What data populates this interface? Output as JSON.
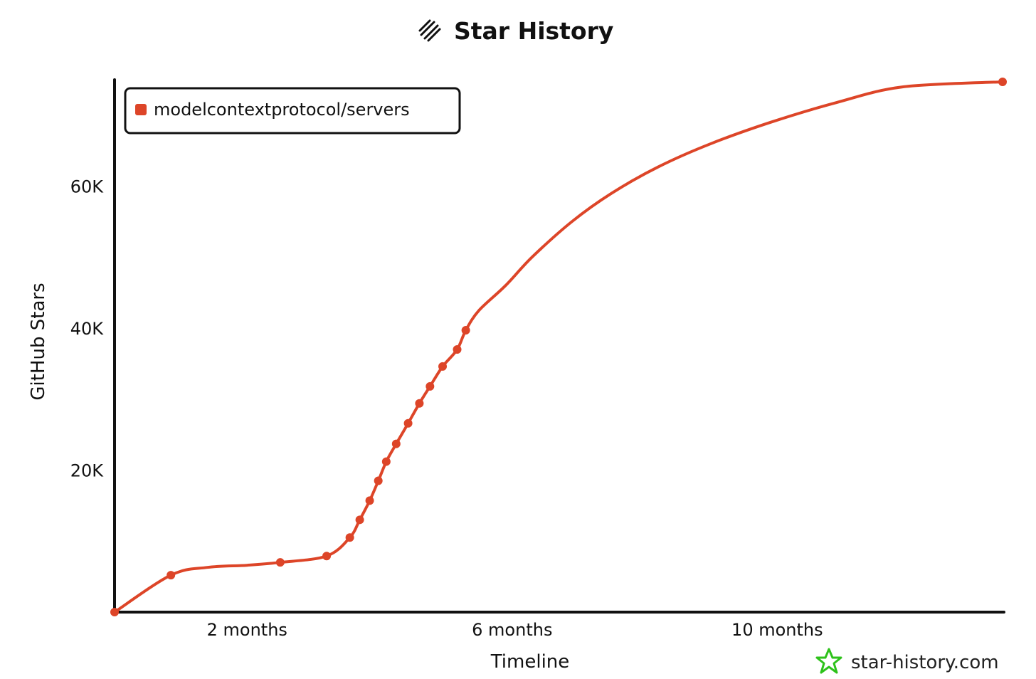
{
  "chart_data": {
    "type": "line",
    "title": "Star History",
    "xlabel": "Timeline",
    "ylabel": "GitHub Stars",
    "x_unit": "months",
    "xlim": [
      0,
      13.4
    ],
    "ylim": [
      0,
      75000
    ],
    "x_ticks": [
      {
        "value": 2,
        "label": "2 months"
      },
      {
        "value": 6,
        "label": "6 months"
      },
      {
        "value": 10,
        "label": "10 months"
      }
    ],
    "y_ticks": [
      {
        "value": 20000,
        "label": "20K"
      },
      {
        "value": 40000,
        "label": "40K"
      },
      {
        "value": 60000,
        "label": "60K"
      }
    ],
    "grid": false,
    "legend_position": "top-left",
    "series": [
      {
        "name": "modelcontextprotocol/servers",
        "color": "#dd4528",
        "x": [
          0,
          0.85,
          1.4,
          2.0,
          2.5,
          3.2,
          3.55,
          3.7,
          3.85,
          3.98,
          4.1,
          4.25,
          4.43,
          4.6,
          4.76,
          4.95,
          5.17,
          5.3,
          5.5,
          5.9,
          6.3,
          6.9,
          7.5,
          8.2,
          9.0,
          9.9,
          10.9,
          11.9,
          13.4
        ],
        "y": [
          0,
          5200,
          6300,
          6600,
          7000,
          7900,
          10500,
          13000,
          15700,
          18500,
          21200,
          23700,
          26600,
          29400,
          31800,
          34600,
          37000,
          39700,
          42500,
          46000,
          50000,
          55000,
          59000,
          62700,
          66000,
          69000,
          71800,
          74000,
          74700
        ],
        "markers_x": [
          0,
          0.85,
          2.5,
          3.2,
          3.55,
          3.7,
          3.85,
          3.98,
          4.1,
          4.25,
          4.43,
          4.6,
          4.76,
          4.95,
          5.17,
          5.3,
          13.4
        ]
      }
    ]
  },
  "watermark": {
    "text": "star-history.com",
    "icon": "star-icon",
    "color": "#2ec21b"
  },
  "title_icon": "logo-icon"
}
